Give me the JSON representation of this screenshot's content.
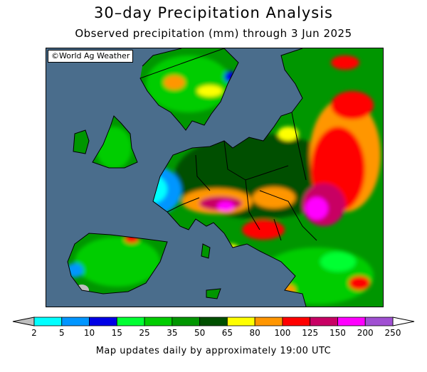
{
  "title": "30–day Precipitation Analysis",
  "subtitle": "Observed precipitation (mm) through 3 Jun 2025",
  "copyright": "©World Ag Weather",
  "footer": "Map updates daily by approximately 19:00 UTC",
  "legend": {
    "unit": "mm",
    "labels": [
      "2",
      "5",
      "10",
      "15",
      "25",
      "35",
      "50",
      "65",
      "80",
      "100",
      "125",
      "150",
      "200",
      "250"
    ],
    "colors": [
      "#00ffff",
      "#0096ff",
      "#0000e6",
      "#00ff32",
      "#00cd00",
      "#009600",
      "#005000",
      "#ffff00",
      "#ff9600",
      "#ff0000",
      "#c80064",
      "#ff00ff",
      "#a050d2"
    ],
    "below_color": "#bebebe",
    "above_color": "#ffffff"
  },
  "map_colors": {
    "ocean": "#4a6d8c",
    "no_data_land": "#bebebe",
    "borders": "#000000"
  }
}
